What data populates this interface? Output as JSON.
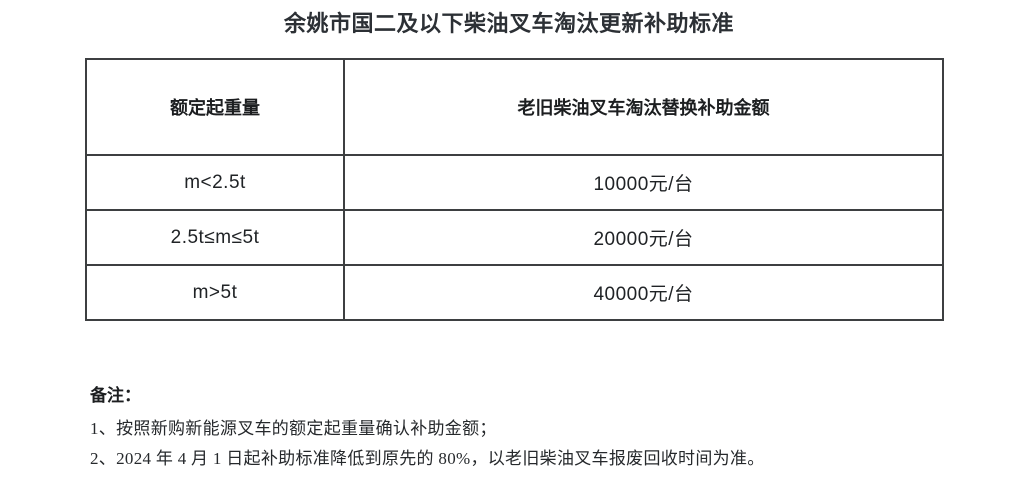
{
  "document": {
    "title": "余姚市国二及以下柴油叉车淘汰更新补助标准"
  },
  "table": {
    "headers": [
      "额定起重量",
      "老旧柴油叉车淘汰替换补助金额"
    ],
    "rows": [
      {
        "capacity": "m<2.5t",
        "amount": "10000元/台"
      },
      {
        "capacity": "2.5t≤m≤5t",
        "amount": "20000元/台"
      },
      {
        "capacity": "m>5t",
        "amount": "40000元/台"
      }
    ]
  },
  "notes": {
    "heading": "备注：",
    "items": [
      "1、按照新购新能源叉车的额定起重量确认补助金额；",
      "2、2024 年 4 月 1 日起补助标准降低到原先的 80%，以老旧柴油叉车报废回收时间为准。"
    ]
  },
  "colors": {
    "background": "#ffffff",
    "border": "#3d3f41",
    "text": "#202326"
  }
}
